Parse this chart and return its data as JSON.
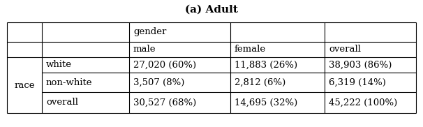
{
  "title": "(a) Adult",
  "col_header_group": "gender",
  "col_headers": [
    "male",
    "female",
    "overall"
  ],
  "row_header_group": "race",
  "row_headers": [
    "white",
    "non-white",
    "overall"
  ],
  "cells": [
    [
      "27,020 (60%)",
      "11,883 (26%)",
      "38,903 (86%)"
    ],
    [
      "3,507 (8%)",
      "2,812 (6%)",
      "6,319 (14%)"
    ],
    [
      "30,527 (68%)",
      "14,695 (32%)",
      "45,222 (100%)"
    ]
  ],
  "background_color": "#ffffff",
  "font_family": "DejaVu Serif",
  "fontsize": 9.5,
  "title_fontsize": 11
}
